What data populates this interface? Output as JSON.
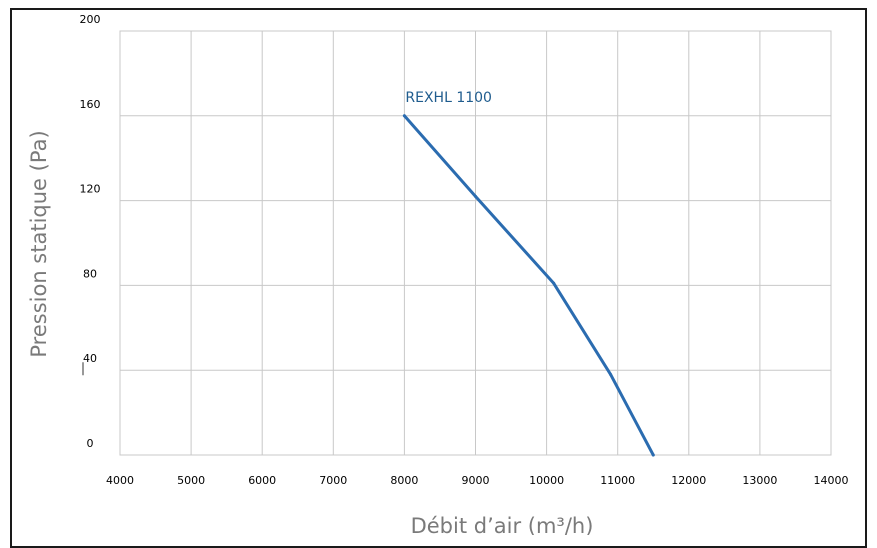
{
  "chart_data": {
    "type": "line",
    "title": "",
    "xlabel": "Débit d’air (m³/h)",
    "ylabel": "Pression statique (Pa)",
    "xlim": [
      4000,
      14000
    ],
    "ylim": [
      0,
      200
    ],
    "xticks": [
      4000,
      5000,
      6000,
      7000,
      8000,
      9000,
      10000,
      11000,
      12000,
      13000,
      14000
    ],
    "yticks": [
      0,
      40,
      80,
      120,
      160,
      200
    ],
    "grid": true,
    "series": [
      {
        "name": "REXHL 1100",
        "color": "#2b6cb0",
        "x": [
          8000,
          9000,
          10100,
          10900,
          11500
        ],
        "y": [
          160,
          122,
          81,
          38,
          0
        ]
      }
    ]
  }
}
